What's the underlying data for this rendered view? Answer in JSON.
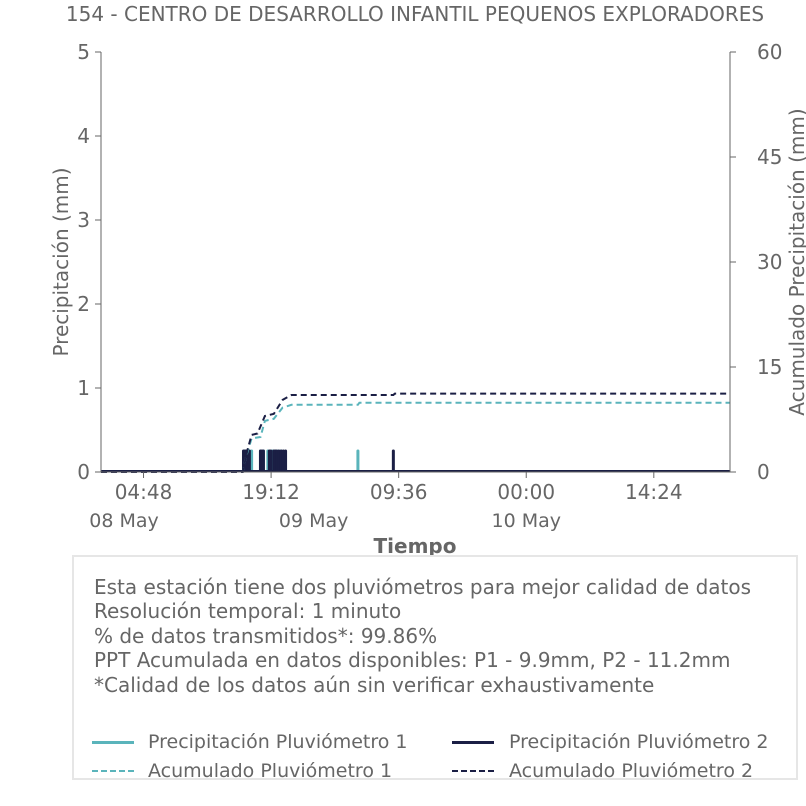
{
  "colors": {
    "p1": "#5ab4bb",
    "p2": "#1b1f45",
    "axis": "#666666",
    "box_border": "#e6e6e6"
  },
  "chart_data": {
    "type": "bar+line",
    "title": "154 - CENTRO DE DESARROLLO INFANTIL PEQUENOS EXPLORADORES",
    "xlabel": "Tiempo",
    "ylabel_left": "Precipitación (mm)",
    "ylabel_right": "Acumulado Precipitación (mm)",
    "ylim_left": [
      0,
      5
    ],
    "ylim_right": [
      0,
      60
    ],
    "yticks_left": [
      0,
      1,
      2,
      3,
      4,
      5
    ],
    "yticks_right": [
      0,
      15,
      30,
      45,
      60
    ],
    "xlim": [
      "2024-05-08T00:00",
      "2024-05-10T23:00"
    ],
    "xticks": [
      {
        "t": "2024-05-08T04:48",
        "label": "04:48"
      },
      {
        "t": "2024-05-08T19:12",
        "label": "19:12"
      },
      {
        "t": "2024-05-09T09:36",
        "label": "09:36"
      },
      {
        "t": "2024-05-10T00:00",
        "label": "00:00"
      },
      {
        "t": "2024-05-10T14:24",
        "label": "14:24"
      }
    ],
    "date_labels": [
      {
        "t": "2024-05-08T00:00",
        "label": "08 May"
      },
      {
        "t": "2024-05-09T00:00",
        "label": "09 May"
      },
      {
        "t": "2024-05-10T00:00",
        "label": "10 May"
      }
    ],
    "grid": false,
    "series": [
      {
        "name": "Precipitación Pluviómetro 1",
        "kind": "bar",
        "axis": "left",
        "color": "#5ab4bb",
        "points": [
          [
            "2024-05-08T16:10",
            0.25
          ],
          [
            "2024-05-08T16:20",
            0.25
          ],
          [
            "2024-05-08T16:30",
            0.25
          ],
          [
            "2024-05-08T16:40",
            0.25
          ],
          [
            "2024-05-08T17:00",
            0.25
          ],
          [
            "2024-05-08T18:00",
            0.25
          ],
          [
            "2024-05-08T18:20",
            0.25
          ],
          [
            "2024-05-08T18:50",
            0.25
          ],
          [
            "2024-05-08T19:20",
            0.25
          ],
          [
            "2024-05-08T19:40",
            0.25
          ],
          [
            "2024-05-08T20:00",
            0.25
          ],
          [
            "2024-05-08T20:20",
            0.25
          ],
          [
            "2024-05-09T05:00",
            0.25
          ]
        ]
      },
      {
        "name": "Precipitación Pluviómetro 2",
        "kind": "bar",
        "axis": "left",
        "color": "#1b1f45",
        "points": [
          [
            "2024-05-08T16:05",
            0.25
          ],
          [
            "2024-05-08T16:15",
            0.25
          ],
          [
            "2024-05-08T16:25",
            0.25
          ],
          [
            "2024-05-08T16:35",
            0.25
          ],
          [
            "2024-05-08T16:45",
            0.25
          ],
          [
            "2024-05-08T18:00",
            0.25
          ],
          [
            "2024-05-08T18:10",
            0.25
          ],
          [
            "2024-05-08T18:20",
            0.25
          ],
          [
            "2024-05-08T19:00",
            0.25
          ],
          [
            "2024-05-08T19:10",
            0.25
          ],
          [
            "2024-05-08T19:30",
            0.25
          ],
          [
            "2024-05-08T19:40",
            0.25
          ],
          [
            "2024-05-08T19:50",
            0.25
          ],
          [
            "2024-05-08T20:05",
            0.25
          ],
          [
            "2024-05-08T20:20",
            0.25
          ],
          [
            "2024-05-08T20:35",
            0.25
          ],
          [
            "2024-05-08T20:50",
            0.25
          ],
          [
            "2024-05-09T09:00",
            0.25
          ]
        ]
      },
      {
        "name": "Acumulado Pluviómetro 1",
        "kind": "line",
        "dash": true,
        "axis": "right",
        "color": "#5ab4bb",
        "points": [
          [
            "2024-05-08T00:00",
            0
          ],
          [
            "2024-05-08T16:00",
            0
          ],
          [
            "2024-05-08T16:20",
            2.0
          ],
          [
            "2024-05-08T17:00",
            4.8
          ],
          [
            "2024-05-08T18:00",
            5.0
          ],
          [
            "2024-05-08T18:30",
            7.3
          ],
          [
            "2024-05-08T19:30",
            7.6
          ],
          [
            "2024-05-08T20:30",
            9.2
          ],
          [
            "2024-05-08T21:30",
            9.6
          ],
          [
            "2024-05-09T05:00",
            9.6
          ],
          [
            "2024-05-09T05:10",
            9.9
          ],
          [
            "2024-05-10T23:00",
            9.9
          ]
        ]
      },
      {
        "name": "Acumulado Pluviómetro 2",
        "kind": "line",
        "dash": true,
        "axis": "right",
        "color": "#1b1f45",
        "points": [
          [
            "2024-05-08T00:00",
            0
          ],
          [
            "2024-05-08T16:00",
            0
          ],
          [
            "2024-05-08T16:30",
            3.0
          ],
          [
            "2024-05-08T17:00",
            5.3
          ],
          [
            "2024-05-08T17:40",
            5.5
          ],
          [
            "2024-05-08T18:30",
            8.0
          ],
          [
            "2024-05-08T19:30",
            8.3
          ],
          [
            "2024-05-08T20:30",
            10.3
          ],
          [
            "2024-05-08T21:30",
            11.0
          ],
          [
            "2024-05-09T09:00",
            11.0
          ],
          [
            "2024-05-09T09:10",
            11.2
          ],
          [
            "2024-05-10T23:00",
            11.2
          ]
        ]
      }
    ]
  },
  "info": {
    "notes": [
      "Esta estación tiene dos pluviómetros para mejor calidad de datos",
      "Resolución temporal: 1 minuto",
      "% de datos transmitidos*: 99.86%",
      "PPT Acumulada en datos disponibles: P1 - 9.9mm, P2 - 11.2mm",
      "*Calidad de los datos aún sin verificar exhaustivamente"
    ],
    "legend": [
      {
        "label": "Precipitación Pluviómetro 1",
        "color": "#5ab4bb",
        "style": "solid"
      },
      {
        "label": "Precipitación Pluviómetro 2",
        "color": "#1b1f45",
        "style": "solid"
      },
      {
        "label": "Acumulado Pluviómetro 1",
        "color": "#5ab4bb",
        "style": "dashed"
      },
      {
        "label": "Acumulado Pluviómetro 2",
        "color": "#1b1f45",
        "style": "dashed"
      }
    ]
  }
}
